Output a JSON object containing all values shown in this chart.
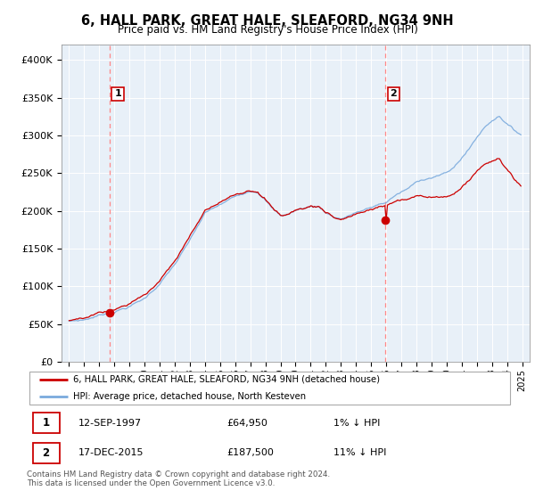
{
  "title": "6, HALL PARK, GREAT HALE, SLEAFORD, NG34 9NH",
  "subtitle": "Price paid vs. HM Land Registry's House Price Index (HPI)",
  "legend_line1": "6, HALL PARK, GREAT HALE, SLEAFORD, NG34 9NH (detached house)",
  "legend_line2": "HPI: Average price, detached house, North Kesteven",
  "annotation1_date": "12-SEP-1997",
  "annotation1_price": "£64,950",
  "annotation1_hpi": "1% ↓ HPI",
  "annotation2_date": "17-DEC-2015",
  "annotation2_price": "£187,500",
  "annotation2_hpi": "11% ↓ HPI",
  "footnote": "Contains HM Land Registry data © Crown copyright and database right 2024.\nThis data is licensed under the Open Government Licence v3.0.",
  "sale1_year": 1997.7,
  "sale1_price": 64950,
  "sale2_year": 2015.96,
  "sale2_price": 187500,
  "line_color_red": "#cc0000",
  "line_color_blue": "#7aaadd",
  "dashed_color": "#ff8888",
  "bg_chart_color": "#e8f0f8",
  "grid_color": "#ffffff",
  "ylim": [
    0,
    420000
  ],
  "yticks": [
    0,
    50000,
    100000,
    150000,
    200000,
    250000,
    300000,
    350000,
    400000
  ],
  "xlabel_years": [
    1995,
    1996,
    1997,
    1998,
    1999,
    2000,
    2001,
    2002,
    2003,
    2004,
    2005,
    2006,
    2007,
    2008,
    2009,
    2010,
    2011,
    2012,
    2013,
    2014,
    2015,
    2016,
    2017,
    2018,
    2019,
    2020,
    2021,
    2022,
    2023,
    2024,
    2025
  ]
}
